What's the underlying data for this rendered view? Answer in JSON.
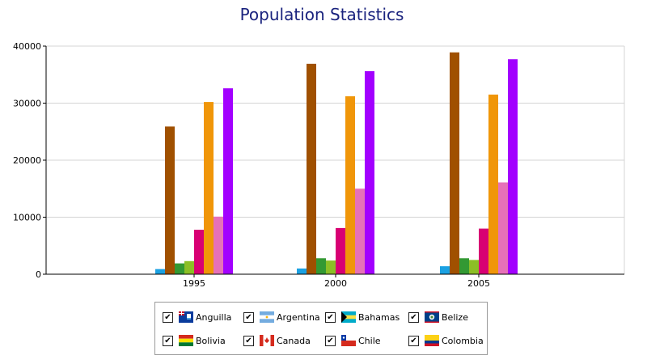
{
  "chart_data": {
    "type": "bar",
    "title": "Population Statistics",
    "xlabel": "",
    "ylabel": "",
    "ylim": [
      0,
      40000
    ],
    "yticks": [
      "0",
      "10000",
      "20000",
      "30000",
      "40000"
    ],
    "categories": [
      "1995",
      "2000",
      "2005"
    ],
    "grid": true,
    "legend_position": "bottom",
    "series": [
      {
        "name": "Anguilla",
        "color": "#1ba1e2",
        "values": [
          900,
          1000,
          1400
        ]
      },
      {
        "name": "Argentina",
        "color": "#a05000",
        "values": [
          25900,
          36900,
          38900
        ]
      },
      {
        "name": "Bahamas",
        "color": "#339933",
        "values": [
          1900,
          2800,
          2800
        ]
      },
      {
        "name": "Belize",
        "color": "#8cbf26",
        "values": [
          2300,
          2400,
          2500
        ]
      },
      {
        "name": "Bolivia",
        "color": "#d80073",
        "values": [
          7800,
          8100,
          8000
        ]
      },
      {
        "name": "Canada",
        "color": "#f09609",
        "values": [
          30200,
          31200,
          31500
        ]
      },
      {
        "name": "Chile",
        "color": "#e671b8",
        "values": [
          10100,
          15000,
          16100
        ]
      },
      {
        "name": "Colombia",
        "color": "#a200ff",
        "values": [
          32600,
          35600,
          37700
        ]
      }
    ]
  },
  "legend": {
    "items": [
      {
        "label": "Anguilla",
        "checked": true,
        "check_mark": "✔",
        "flag": "anguilla-flag-icon"
      },
      {
        "label": "Argentina",
        "checked": true,
        "check_mark": "✔",
        "flag": "argentina-flag-icon"
      },
      {
        "label": "Bahamas",
        "checked": true,
        "check_mark": "✔",
        "flag": "bahamas-flag-icon"
      },
      {
        "label": "Belize",
        "checked": true,
        "check_mark": "✔",
        "flag": "belize-flag-icon"
      },
      {
        "label": "Bolivia",
        "checked": true,
        "check_mark": "✔",
        "flag": "bolivia-flag-icon"
      },
      {
        "label": "Canada",
        "checked": true,
        "check_mark": "✔",
        "flag": "canada-flag-icon"
      },
      {
        "label": "Chile",
        "checked": true,
        "check_mark": "✔",
        "flag": "chile-flag-icon"
      },
      {
        "label": "Colombia",
        "checked": true,
        "check_mark": "✔",
        "flag": "colombia-flag-icon"
      }
    ]
  }
}
